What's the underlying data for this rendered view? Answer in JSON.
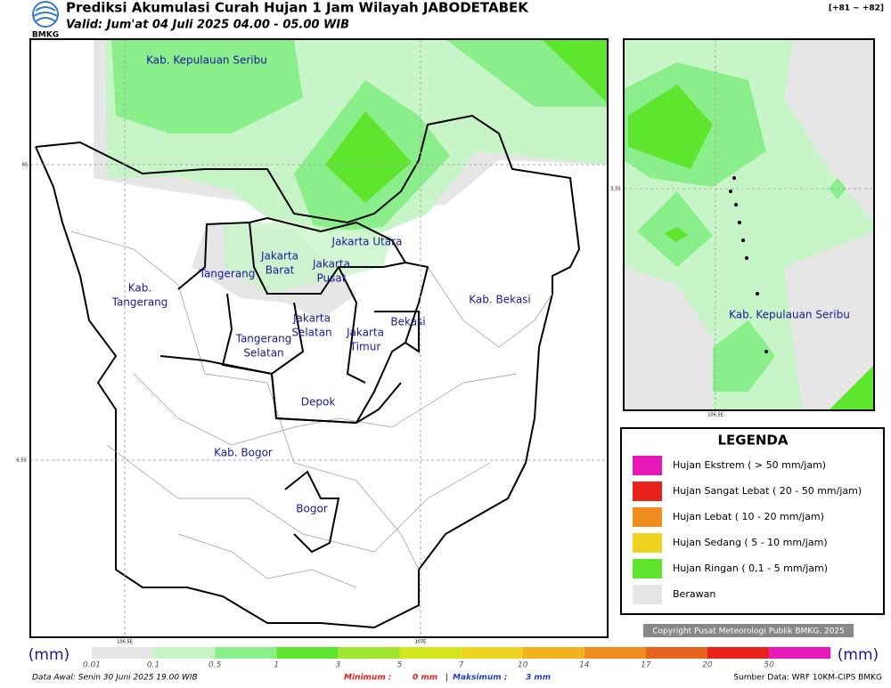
{
  "header": {
    "title": "Prediksi Akumulasi Curah Hujan 1 Jam Wilayah JABODETABEK",
    "valid": "Valid: Jum'at 04 Juli 2025 04.00 - 05.00 WIB",
    "logo": "BMKG",
    "code": "[+81 ~ +82]"
  },
  "map": {
    "labels": [
      [
        "Kab. Kepulauan Seribu"
      ],
      [
        "Jakarta Utara"
      ],
      [
        "Jakarta",
        "Barat"
      ],
      [
        "Jakarta",
        "Pusat"
      ],
      [
        "Tangerang"
      ],
      [
        "Kab.",
        "Tangerang"
      ],
      [
        "Jakarta",
        "Selatan"
      ],
      [
        "Tangerang",
        "Selatan"
      ],
      [
        "Jakarta",
        "Timur"
      ],
      [
        "Bekasi"
      ],
      [
        "Kab. Bekasi"
      ],
      [
        "Depok"
      ],
      [
        "Kab. Bogor"
      ],
      [
        "Bogor"
      ]
    ],
    "lat_labels": [
      "6S",
      "6.5S"
    ],
    "lon_labels": [
      "106.5E",
      "107E"
    ]
  },
  "inset": {
    "label": "Kab. Kepulauan Seribu",
    "lat_label": "5.5S",
    "lon_label": "106.5E"
  },
  "legend": {
    "title": "LEGENDA",
    "items": [
      {
        "label": "Hujan Ekstrem ( > 50 mm/jam)",
        "color": "#e619b8"
      },
      {
        "label": "Hujan Sangat Lebat ( 20 - 50 mm/jam)",
        "color": "#e8231e"
      },
      {
        "label": "Hujan Lebat ( 10 - 20 mm/jam)",
        "color": "#ee8c1e"
      },
      {
        "label": "Hujan Sedang ( 5 - 10 mm/jam)",
        "color": "#eed21e"
      },
      {
        "label": "Hujan Ringan ( 0,1 - 5 mm/jam)",
        "color": "#5ee62e"
      },
      {
        "label": "Berawan",
        "color": "#e6e6e6"
      }
    ]
  },
  "copyright": "Copyright Pusat Meteorologi Publik BMKG, 2025",
  "colorbar": {
    "unit": "(mm)",
    "ticks": [
      "0.01",
      "0.1",
      "0.5",
      "1",
      "3",
      "5",
      "7",
      "10",
      "14",
      "17",
      "20",
      "50"
    ],
    "colors": [
      "#e6e6e6",
      "#c8f5c8",
      "#8aee8a",
      "#5ee62e",
      "#a0e62e",
      "#d2e61e",
      "#eed21e",
      "#f0b41e",
      "#ee8c1e",
      "#e8641e",
      "#e8231e",
      "#e619b8"
    ]
  },
  "footer": {
    "data_awal": "Data Awal: Senin 30 Juni 2025 19.00 WIB",
    "min_label": "Minimum :",
    "min_value": "0 mm",
    "separator": "|",
    "max_label": "Maksimum :",
    "max_value": "3 mm",
    "source": "Sumber Data: WRF 10KM-CIPS BMKG"
  }
}
